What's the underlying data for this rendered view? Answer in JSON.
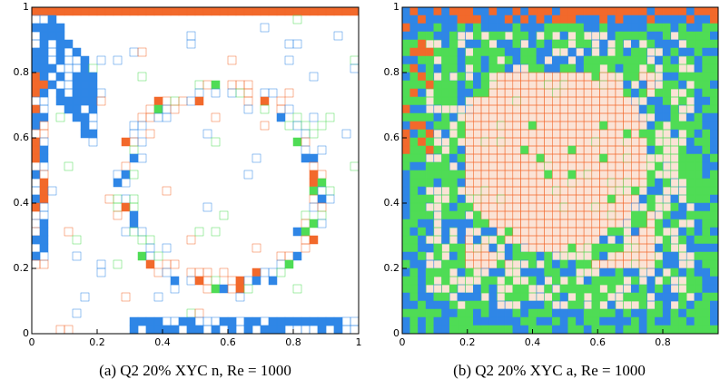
{
  "panels": [
    {
      "caption": "(a)  Q2 20% XYC n, Re = 1000",
      "xlim": [
        0,
        1
      ],
      "ylim": [
        0,
        1
      ],
      "xticks": [
        0,
        0.2,
        0.4,
        0.6,
        0.8,
        1
      ],
      "yticks": [
        0,
        0.2,
        0.4,
        0.6,
        0.8,
        1
      ]
    },
    {
      "caption": "(b)  Q2 20% XYC a, Re = 1000",
      "xlim": [
        0,
        0.97
      ],
      "ylim": [
        0,
        1
      ],
      "xticks": [
        0,
        0.2,
        0.4,
        0.6,
        0.8
      ],
      "yticks": [
        0,
        0.2,
        0.4,
        0.6,
        0.8,
        1
      ]
    }
  ]
}
